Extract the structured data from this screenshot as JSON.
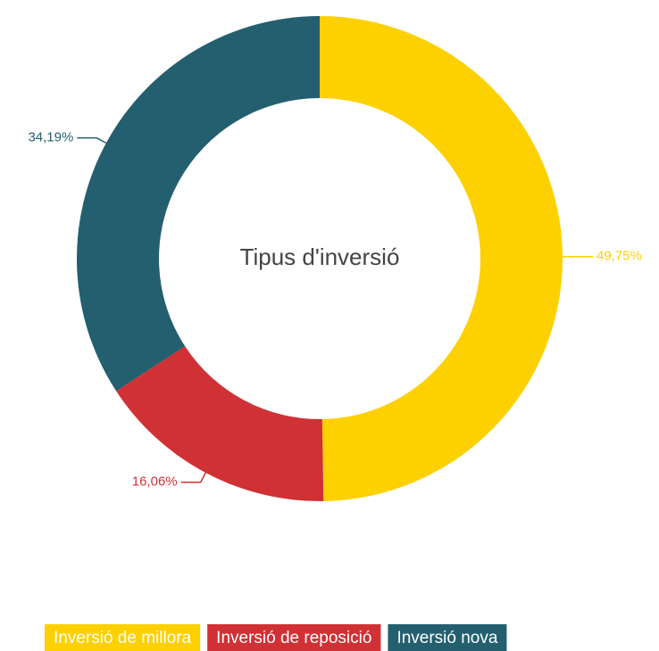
{
  "chart_data": {
    "type": "pie",
    "title": "Tipus d'inversió",
    "categories": [
      "Inversió de millora",
      "Inversió de reposició",
      "Inversió nova"
    ],
    "values": [
      49.75,
      16.06,
      34.19
    ],
    "value_labels": [
      "49,75%",
      "16,06%",
      "34,19%"
    ],
    "colors": [
      "#fdd000",
      "#d03134",
      "#235f6f"
    ],
    "donut": true
  }
}
